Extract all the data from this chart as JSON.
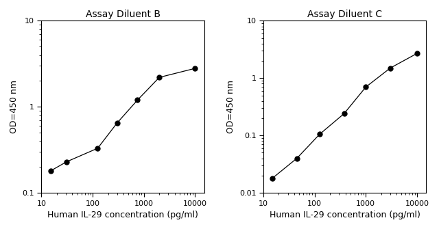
{
  "left": {
    "title": "Assay Diluent B",
    "x": [
      15,
      31,
      125,
      300,
      750,
      2000,
      10000
    ],
    "y": [
      0.18,
      0.23,
      0.33,
      0.65,
      1.2,
      2.2,
      2.8
    ],
    "xlim": [
      10,
      15000
    ],
    "ylim": [
      0.1,
      10
    ],
    "yticks": [
      0.1,
      1,
      10
    ],
    "xticks": [
      10,
      100,
      1000,
      10000
    ],
    "xlabel": "Human IL-29 concentration (pg/ml)",
    "ylabel": "OD=450 nm"
  },
  "right": {
    "title": "Assay Diluent C",
    "x": [
      15,
      45,
      125,
      375,
      1000,
      3000,
      10000
    ],
    "y": [
      0.018,
      0.04,
      0.105,
      0.24,
      0.7,
      1.5,
      2.7
    ],
    "xlim": [
      10,
      15000
    ],
    "ylim": [
      0.01,
      10
    ],
    "yticks": [
      0.01,
      0.1,
      1,
      10
    ],
    "xticks": [
      10,
      100,
      1000,
      10000
    ],
    "xlabel": "Human IL-29 concentration (pg/ml)",
    "ylabel": "OD=450 nm"
  },
  "line_color": "#000000",
  "marker": "o",
  "markersize": 5,
  "markerfacecolor": "#000000",
  "fontsize_title": 10,
  "fontsize_label": 9,
  "fontsize_tick": 8
}
